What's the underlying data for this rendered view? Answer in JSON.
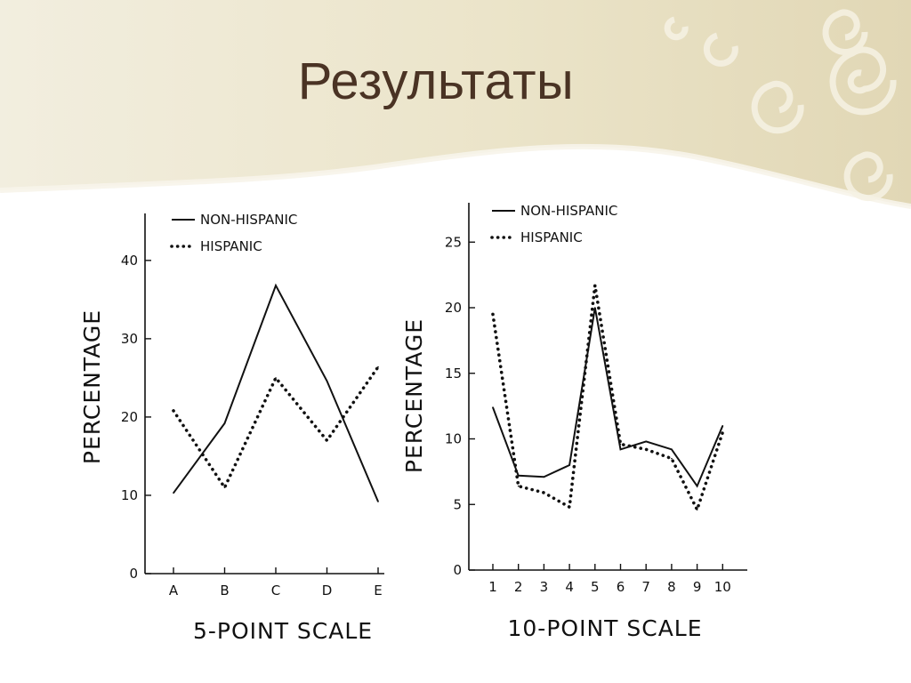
{
  "slide": {
    "title": "Результаты"
  },
  "colors": {
    "header_bg": "#e9e2c8",
    "title": "#4a3324",
    "line": "#111111"
  },
  "chart_data": [
    {
      "type": "line",
      "title": "",
      "xlabel": "5-POINT SCALE",
      "ylabel": "PERCENTAGE",
      "categories": [
        "A",
        "B",
        "C",
        "D",
        "E"
      ],
      "yticks": [
        0,
        10,
        20,
        30,
        40
      ],
      "ylim": [
        0,
        46
      ],
      "legend_position": "top-left",
      "grid": false,
      "series": [
        {
          "name": "NON-HISPANIC",
          "style": "solid",
          "values": [
            10.3,
            19.2,
            36.8,
            24.6,
            9.2
          ]
        },
        {
          "name": "HISPANIC",
          "style": "dotted",
          "values": [
            20.8,
            11.0,
            25.0,
            17.0,
            26.4
          ]
        }
      ]
    },
    {
      "type": "line",
      "title": "",
      "xlabel": "10-POINT SCALE",
      "ylabel": "PERCENTAGE",
      "categories": [
        "1",
        "2",
        "3",
        "4",
        "5",
        "6",
        "7",
        "8",
        "9",
        "10"
      ],
      "yticks": [
        0,
        5,
        10,
        15,
        20,
        25
      ],
      "ylim": [
        0,
        28
      ],
      "legend_position": "top-left",
      "grid": false,
      "series": [
        {
          "name": "NON-HISPANIC",
          "style": "solid",
          "values": [
            12.4,
            7.2,
            7.1,
            8.0,
            20.0,
            9.2,
            9.8,
            9.2,
            6.4,
            11.0
          ]
        },
        {
          "name": "HISPANIC",
          "style": "dotted",
          "values": [
            19.5,
            6.4,
            5.9,
            4.8,
            21.7,
            9.6,
            9.2,
            8.5,
            4.6,
            10.5
          ]
        }
      ]
    }
  ]
}
